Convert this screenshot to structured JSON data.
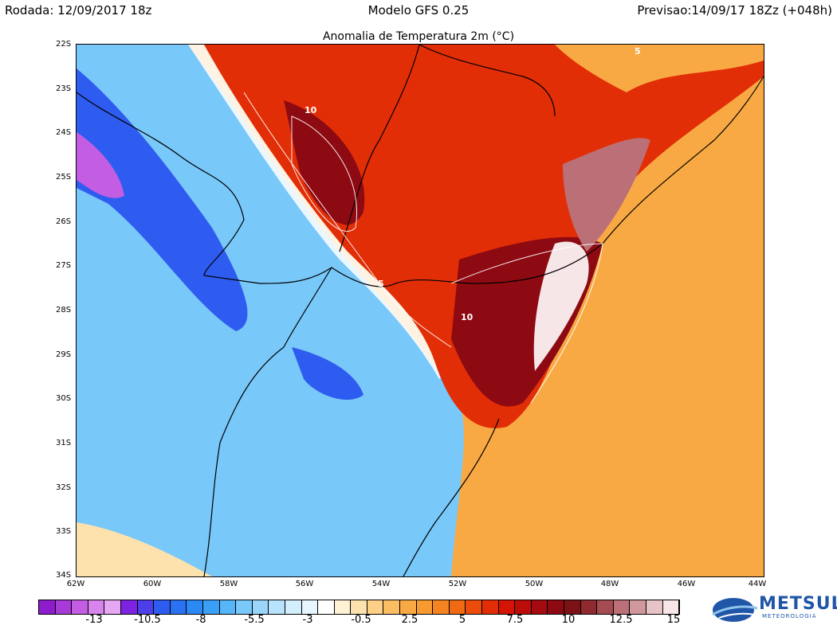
{
  "header": {
    "run_date": "Rodada: 12/09/2017 18z",
    "model": "Modelo GFS 0.25",
    "forecast": "Previsao:14/09/17 18Zz (+048h)"
  },
  "map": {
    "title": "Anomalia de Temperatura 2m (°C)",
    "latitude_labels": [
      "22S",
      "23S",
      "24S",
      "25S",
      "26S",
      "27S",
      "28S",
      "29S",
      "30S",
      "31S",
      "32S",
      "33S",
      "34S"
    ],
    "longitude_labels": [
      "62W",
      "60W",
      "58W",
      "56W",
      "54W",
      "52W",
      "50W",
      "48W",
      "46W",
      "44W"
    ],
    "contour_labels": [
      "10",
      "5",
      "10",
      "5"
    ]
  },
  "colorbar": {
    "ticks": [
      "-13",
      "-10.5",
      "-8",
      "-5.5",
      "-3",
      "-0.5",
      "2.5",
      "5",
      "7.5",
      "10",
      "12.5",
      "15"
    ],
    "colors": [
      "#8c1ccc",
      "#a83ad8",
      "#c35ee4",
      "#d884ec",
      "#e6a7f2",
      "#7d22e0",
      "#4c3ee8",
      "#2f5cf0",
      "#2a72f2",
      "#2c88f4",
      "#3aa0f6",
      "#56b6f8",
      "#79c8fa",
      "#9ad6fb",
      "#b7e3fc",
      "#d3eefd",
      "#e7f6fe",
      "#ffffff",
      "#fff1d6",
      "#fde2ad",
      "#fcd087",
      "#fbbe62",
      "#f9a944",
      "#f79a30",
      "#f48420",
      "#f06a14",
      "#eb4c0c",
      "#e22e06",
      "#d41404",
      "#bb0c0a",
      "#a40a10",
      "#8e0a12",
      "#7c1216",
      "#8e2a30",
      "#a44c52",
      "#ba7076",
      "#d0979c",
      "#e6c3c6",
      "#f6e6e8"
    ]
  },
  "logo": {
    "name": "METSUL",
    "subtitle": "METEOROLOGIA"
  }
}
